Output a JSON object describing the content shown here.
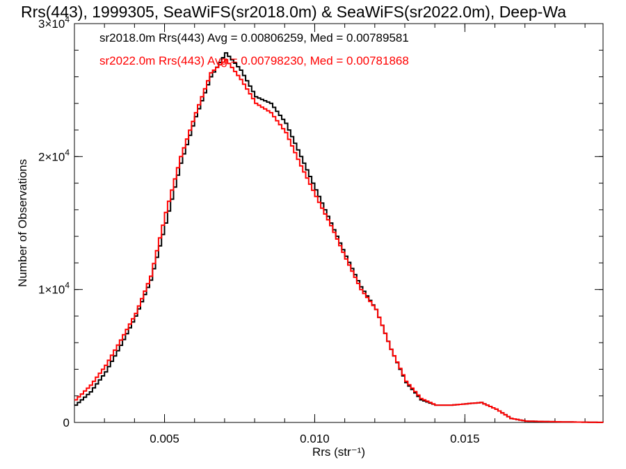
{
  "chart_data": {
    "type": "line",
    "title": "Rrs(443), 1999305, SeaWiFS(sr2018.0m) & SeaWiFS(sr2022.0m), Deep-Wa",
    "xlabel": "Rrs (str⁻¹)",
    "ylabel": "Number of Observations",
    "xlim": [
      0.002,
      0.0196
    ],
    "ylim": [
      0,
      30000
    ],
    "grid": false,
    "legend_position": "top-left",
    "x_ticks": [
      {
        "value": 0.005,
        "label": "0.005"
      },
      {
        "value": 0.01,
        "label": "0.010"
      },
      {
        "value": 0.015,
        "label": "0.015"
      }
    ],
    "y_ticks": [
      {
        "value": 0,
        "label": "0",
        "exp": ""
      },
      {
        "value": 10000,
        "label": "1×10",
        "exp": "4"
      },
      {
        "value": 20000,
        "label": "2×10",
        "exp": "4"
      },
      {
        "value": 30000,
        "label": "3×10",
        "exp": "4"
      }
    ],
    "annotations": [
      "sr2018.0m Rrs(443) Avg = 0.00806259, Med = 0.00789581",
      "sr2022.0m Rrs(443) Avg = 0.00798230, Med = 0.00781868"
    ],
    "series": [
      {
        "color": "#000000",
        "points": [
          [
            0.002,
            1300
          ],
          [
            0.0025,
            2300
          ],
          [
            0.003,
            3800
          ],
          [
            0.0035,
            5800
          ],
          [
            0.004,
            8000
          ],
          [
            0.0045,
            10700
          ],
          [
            0.005,
            15000
          ],
          [
            0.0055,
            19500
          ],
          [
            0.006,
            23000
          ],
          [
            0.0065,
            26000
          ],
          [
            0.007,
            27800
          ],
          [
            0.0075,
            26500
          ],
          [
            0.008,
            24500
          ],
          [
            0.0085,
            24000
          ],
          [
            0.009,
            22500
          ],
          [
            0.0095,
            20000
          ],
          [
            0.01,
            17500
          ],
          [
            0.0105,
            15000
          ],
          [
            0.011,
            12500
          ],
          [
            0.0115,
            10200
          ],
          [
            0.012,
            8500
          ],
          [
            0.0125,
            5500
          ],
          [
            0.013,
            3000
          ],
          [
            0.0135,
            1700
          ],
          [
            0.014,
            1300
          ],
          [
            0.0145,
            1300
          ],
          [
            0.015,
            1400
          ],
          [
            0.0155,
            1500
          ],
          [
            0.016,
            1000
          ],
          [
            0.0165,
            300
          ],
          [
            0.017,
            100
          ],
          [
            0.018,
            50
          ],
          [
            0.0196,
            0
          ]
        ]
      },
      {
        "color": "#ff0000",
        "points": [
          [
            0.002,
            1700
          ],
          [
            0.0025,
            2800
          ],
          [
            0.003,
            4300
          ],
          [
            0.0035,
            6200
          ],
          [
            0.004,
            8200
          ],
          [
            0.0045,
            11000
          ],
          [
            0.005,
            15800
          ],
          [
            0.0055,
            20000
          ],
          [
            0.006,
            23300
          ],
          [
            0.0065,
            26300
          ],
          [
            0.007,
            27300
          ],
          [
            0.0075,
            25800
          ],
          [
            0.008,
            24000
          ],
          [
            0.0085,
            23300
          ],
          [
            0.009,
            21800
          ],
          [
            0.0095,
            19300
          ],
          [
            0.01,
            17000
          ],
          [
            0.0105,
            14800
          ],
          [
            0.011,
            12300
          ],
          [
            0.0115,
            10000
          ],
          [
            0.012,
            8500
          ],
          [
            0.0125,
            5500
          ],
          [
            0.013,
            3100
          ],
          [
            0.0135,
            1800
          ],
          [
            0.014,
            1300
          ],
          [
            0.0145,
            1300
          ],
          [
            0.015,
            1400
          ],
          [
            0.0155,
            1500
          ],
          [
            0.016,
            1000
          ],
          [
            0.0165,
            300
          ],
          [
            0.017,
            100
          ],
          [
            0.018,
            50
          ],
          [
            0.0196,
            0
          ]
        ]
      }
    ]
  }
}
